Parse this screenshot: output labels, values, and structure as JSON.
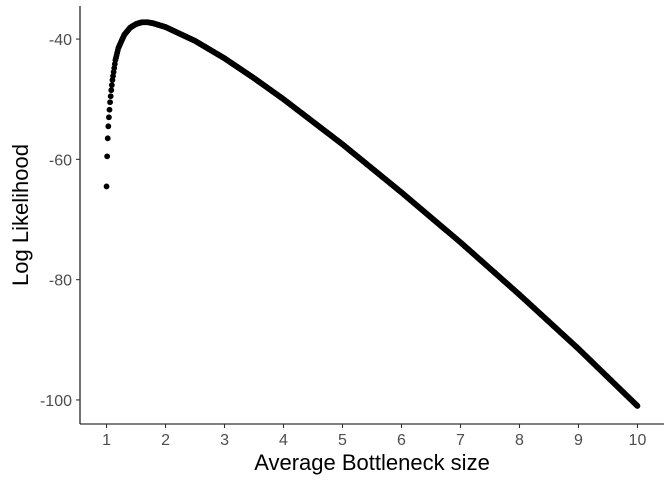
{
  "chart_data": {
    "type": "scatter",
    "title": "",
    "xlabel": "Average Bottleneck size",
    "ylabel": "Log Likelihood",
    "xlim": [
      0.55,
      10.45
    ],
    "ylim": [
      -104,
      -34.5
    ],
    "xticks": [
      1,
      2,
      3,
      4,
      5,
      6,
      7,
      8,
      9,
      10
    ],
    "xtick_labels": [
      "1",
      "2",
      "3",
      "4",
      "5",
      "6",
      "7",
      "8",
      "9",
      "10"
    ],
    "yticks": [
      -40,
      -60,
      -80,
      -100
    ],
    "ytick_labels": [
      "-40",
      "-60",
      "-80",
      "-100"
    ],
    "grid": false,
    "legend": "none",
    "series": [
      {
        "name": "log-likelihood",
        "color": "#000000",
        "x_start": 1.0,
        "x_end": 10.0,
        "x_step": 0.01,
        "curve_anchors": [
          [
            1.0,
            -64.5
          ],
          [
            1.01,
            -59.5
          ],
          [
            1.02,
            -56.5
          ],
          [
            1.03,
            -54.5
          ],
          [
            1.04,
            -53.0
          ],
          [
            1.06,
            -50.5
          ],
          [
            1.08,
            -48.5
          ],
          [
            1.1,
            -46.8
          ],
          [
            1.15,
            -43.5
          ],
          [
            1.2,
            -41.5
          ],
          [
            1.3,
            -39.3
          ],
          [
            1.4,
            -38.1
          ],
          [
            1.5,
            -37.5
          ],
          [
            1.6,
            -37.2
          ],
          [
            1.7,
            -37.2
          ],
          [
            1.8,
            -37.4
          ],
          [
            2.0,
            -38.0
          ],
          [
            2.5,
            -40.3
          ],
          [
            3.0,
            -43.2
          ],
          [
            3.5,
            -46.5
          ],
          [
            4.0,
            -50.0
          ],
          [
            5.0,
            -57.5
          ],
          [
            6.0,
            -65.5
          ],
          [
            7.0,
            -73.8
          ],
          [
            8.0,
            -82.5
          ],
          [
            9.0,
            -91.5
          ],
          [
            10.0,
            -101.0
          ]
        ]
      }
    ]
  }
}
